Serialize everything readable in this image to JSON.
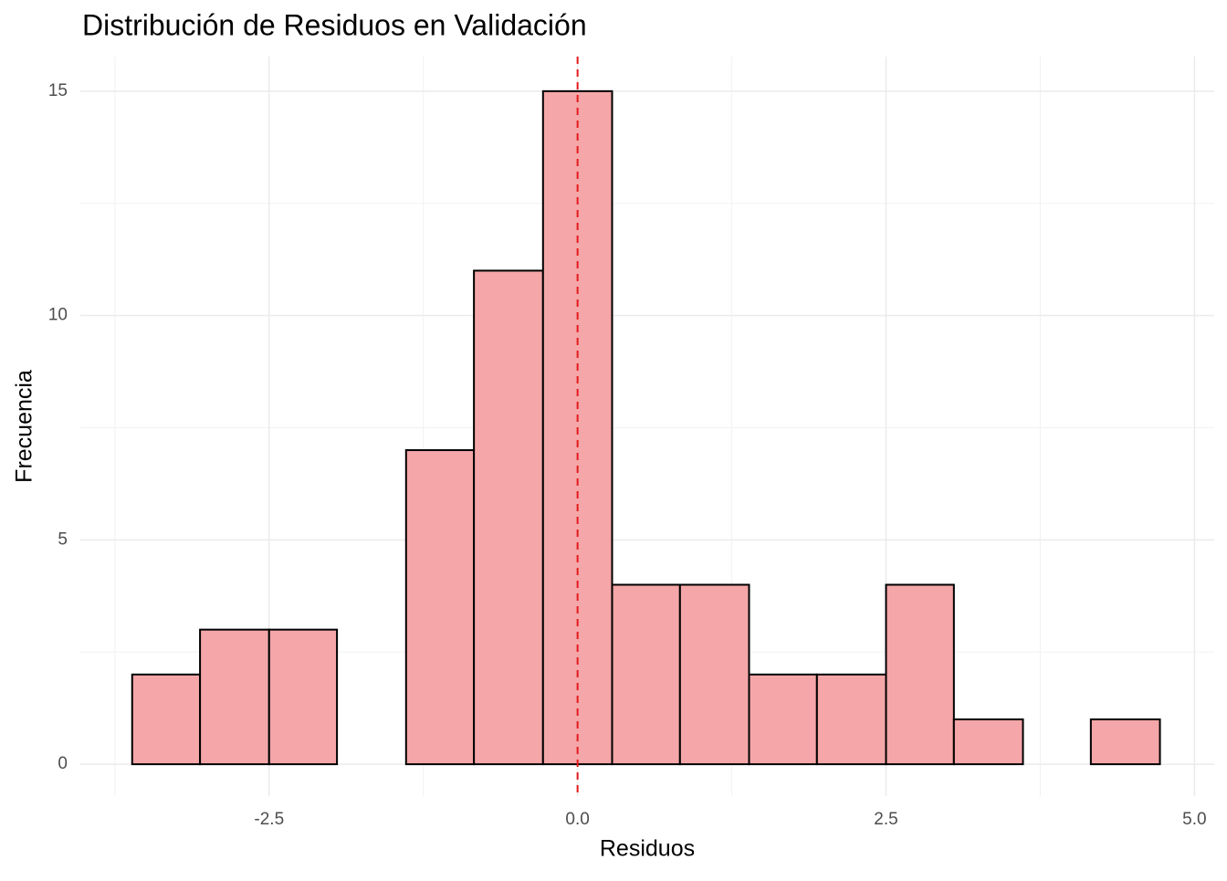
{
  "chart_data": {
    "type": "histogram",
    "title": "Distribución de Residuos en Validación",
    "x_label": "Residuos",
    "y_label": "Frecuencia",
    "bins": [
      -3.61,
      -3.06,
      -2.5,
      -1.95,
      -1.39,
      -0.84,
      -0.28,
      0.28,
      0.83,
      1.39,
      1.94,
      2.5,
      3.05,
      3.61,
      4.16,
      4.72
    ],
    "values": [
      2,
      3,
      3,
      0,
      7,
      11,
      15,
      4,
      4,
      2,
      2,
      4,
      1,
      0,
      1
    ],
    "color": "#f4a6a8",
    "edge_color": "#000000",
    "xlim": [
      -4.03,
      5.16
    ],
    "ylim": [
      -0.71,
      15.77
    ],
    "xticks": [
      {
        "value": -2.5,
        "label": "-2.5"
      },
      {
        "value": 0,
        "label": "0.0"
      },
      {
        "value": 2.5,
        "label": "2.5"
      },
      {
        "value": 5,
        "label": "5.0"
      }
    ],
    "yticks": [
      0,
      5,
      10,
      15
    ],
    "x_minor_ticks": [
      -3.75,
      -1.25,
      1.25,
      3.75
    ],
    "y_minor_ticks": [
      2.5,
      7.5,
      12.5
    ],
    "grid": true,
    "vline": {
      "value": 0,
      "color": "#e41a1c"
    }
  }
}
